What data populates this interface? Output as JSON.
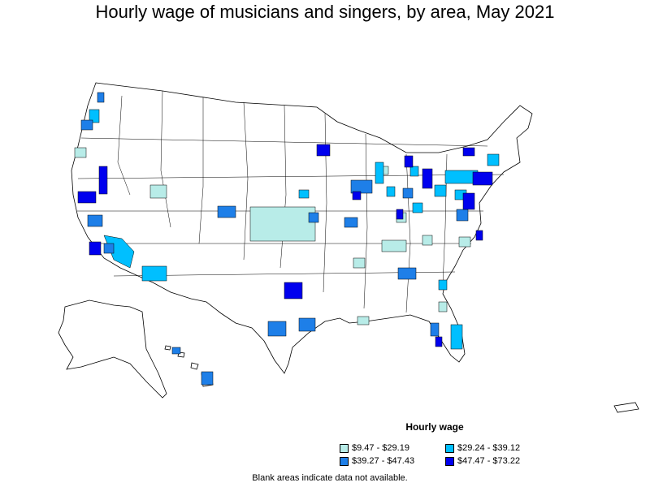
{
  "title": "Hourly wage of musicians and singers, by area, May 2021",
  "legend": {
    "title": "Hourly wage",
    "items": [
      {
        "label": "$9.47 - $29.19",
        "color": "#b8ece8"
      },
      {
        "label": "$29.24 - $39.12",
        "color": "#00bfff"
      },
      {
        "label": "$39.27 - $47.43",
        "color": "#1e7fe8"
      },
      {
        "label": "$47.47 - $73.22",
        "color": "#0000ee"
      }
    ]
  },
  "note": "Blank areas indicate data not available."
}
